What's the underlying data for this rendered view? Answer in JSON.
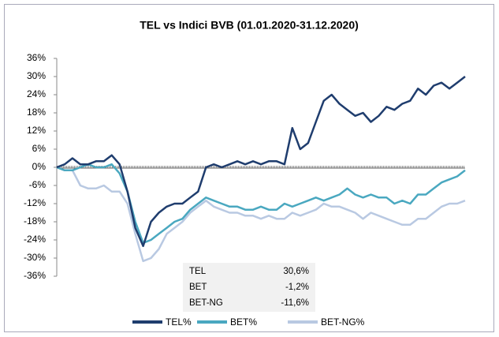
{
  "chart_data": {
    "type": "line",
    "title": "TEL vs Indici BVB (01.01.2020-31.12.2020)",
    "ylim": [
      -36,
      36
    ],
    "yticks": [
      {
        "value": 36,
        "label": "36%"
      },
      {
        "value": 30,
        "label": "30%"
      },
      {
        "value": 24,
        "label": "24%"
      },
      {
        "value": 18,
        "label": "18%"
      },
      {
        "value": 12,
        "label": "12%"
      },
      {
        "value": 6,
        "label": "6%"
      },
      {
        "value": 0,
        "label": "0%"
      },
      {
        "value": -6,
        "label": "-6%"
      },
      {
        "value": -12,
        "label": "-12%"
      },
      {
        "value": -18,
        "label": "-18%"
      },
      {
        "value": -24,
        "label": "-24%"
      },
      {
        "value": -30,
        "label": "-30%"
      },
      {
        "value": -36,
        "label": "-36%"
      }
    ],
    "grid": false,
    "legend": "bottom",
    "series": [
      {
        "name": "TEL%",
        "color": "#1f3d6e",
        "values": [
          0,
          1,
          3,
          1,
          1,
          2,
          2,
          4,
          1,
          -8,
          -20,
          -26,
          -18,
          -15,
          -13,
          -12,
          -12,
          -10,
          -8,
          0,
          1,
          0,
          1,
          2,
          1,
          2,
          1,
          2,
          2,
          1,
          13,
          6,
          8,
          15,
          22,
          24,
          21,
          19,
          17,
          18,
          15,
          17,
          20,
          19,
          21,
          22,
          26,
          24,
          27,
          28,
          26,
          28,
          30
        ]
      },
      {
        "name": "BET%",
        "color": "#4aa8c0",
        "values": [
          0,
          -1,
          -1,
          0,
          1,
          0,
          0,
          1,
          -2,
          -8,
          -18,
          -25,
          -24,
          -22,
          -20,
          -18,
          -17,
          -14,
          -12,
          -10,
          -11,
          -12,
          -13,
          -13,
          -14,
          -14,
          -13,
          -14,
          -14,
          -12,
          -13,
          -12,
          -11,
          -10,
          -11,
          -10,
          -9,
          -7,
          -9,
          -10,
          -9,
          -10,
          -10,
          -12,
          -11,
          -12,
          -9,
          -9,
          -7,
          -5,
          -4,
          -3,
          -1
        ]
      },
      {
        "name": "BET-NG%",
        "color": "#b9c9e2",
        "values": [
          0,
          -1,
          -1,
          -6,
          -7,
          -7,
          -6,
          -8,
          -8,
          -12,
          -22,
          -31,
          -30,
          -27,
          -22,
          -20,
          -18,
          -15,
          -13,
          -11,
          -13,
          -14,
          -15,
          -15,
          -16,
          -16,
          -17,
          -16,
          -17,
          -17,
          -15,
          -16,
          -15,
          -14,
          -12,
          -13,
          -13,
          -14,
          -15,
          -17,
          -15,
          -16,
          -17,
          -18,
          -19,
          -19,
          -17,
          -17,
          -15,
          -13,
          -12,
          -12,
          -11
        ]
      }
    ],
    "table": {
      "rows": [
        [
          "TEL",
          "30,6%"
        ],
        [
          "BET",
          "-1,2%"
        ],
        [
          "BET-NG",
          "-11,6%"
        ]
      ]
    }
  }
}
